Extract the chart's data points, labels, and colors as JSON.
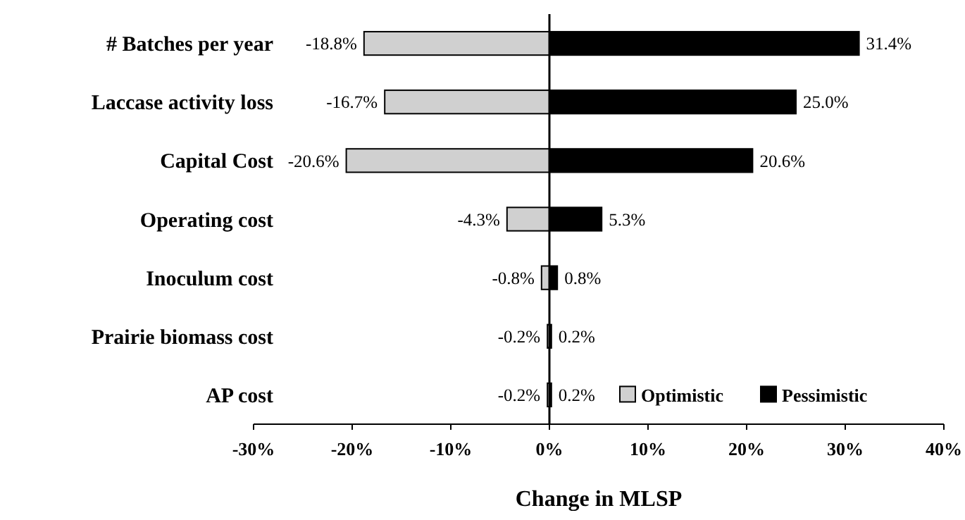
{
  "chart_data": {
    "type": "bar",
    "orientation": "horizontal",
    "stacked": true,
    "xlabel": "Change in MLSP",
    "categories": [
      "# Batches per year",
      "Laccase activity loss",
      "Capital Cost",
      "Operating cost",
      "Inoculum cost",
      "Prairie biomass cost",
      "AP cost"
    ],
    "series": [
      {
        "name": "Optimistic",
        "color": "#d0d0d0",
        "values": [
          -18.8,
          -16.7,
          -20.6,
          -4.3,
          -0.8,
          -0.2,
          -0.2
        ],
        "value_labels": [
          "-18.8%",
          "-16.7%",
          "-20.6%",
          "-4.3%",
          "-0.8%",
          "-0.2%",
          "-0.2%"
        ]
      },
      {
        "name": "Pessimistic",
        "color": "#000000",
        "values": [
          31.4,
          25.0,
          20.6,
          5.3,
          0.8,
          0.2,
          0.2
        ],
        "value_labels": [
          "31.4%",
          "25.0%",
          "20.6%",
          "5.3%",
          "0.8%",
          "0.2%",
          "0.2%"
        ]
      }
    ],
    "xlim": [
      -30,
      40
    ],
    "xticks": [
      {
        "value": -30,
        "label": "-30%"
      },
      {
        "value": -20,
        "label": "-20%"
      },
      {
        "value": -10,
        "label": "-10%"
      },
      {
        "value": 0,
        "label": "0%"
      },
      {
        "value": 10,
        "label": "10%"
      },
      {
        "value": 20,
        "label": "20%"
      },
      {
        "value": 30,
        "label": "30%"
      },
      {
        "value": 40,
        "label": "40%"
      }
    ],
    "legend": "bottom right"
  }
}
